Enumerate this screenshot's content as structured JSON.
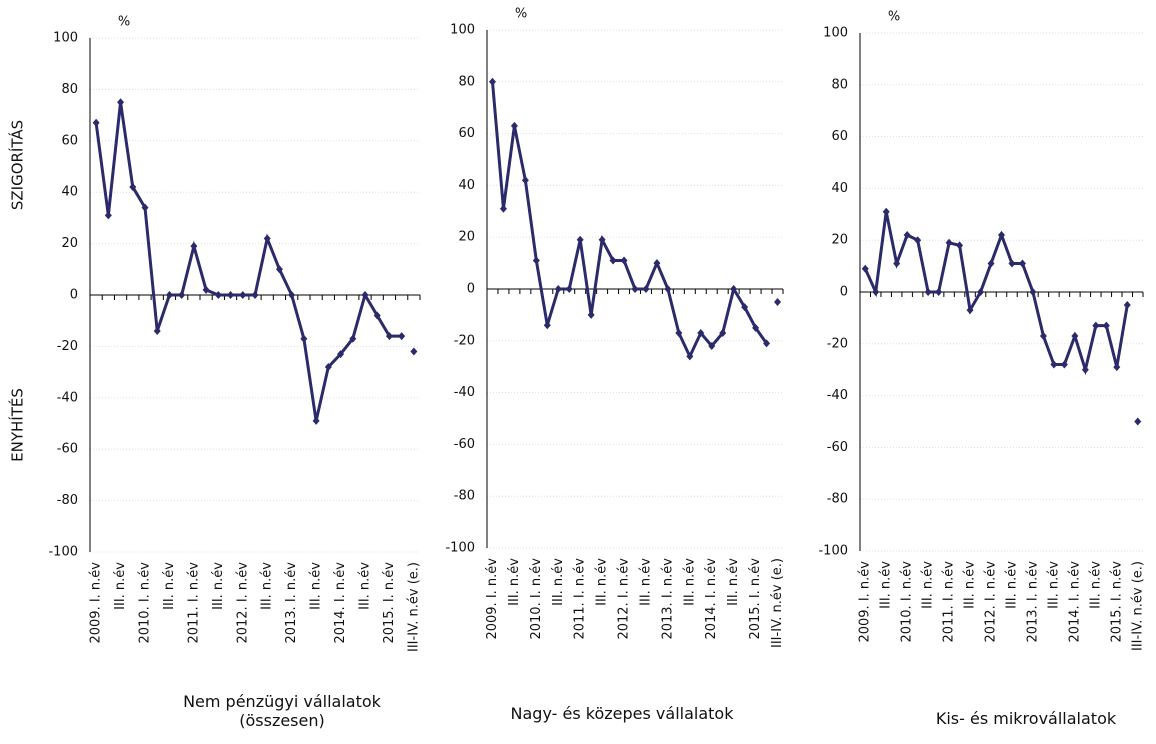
{
  "chart_data": [
    {
      "type": "line",
      "title": "Nem pénzügyi vállalatok (összesen)",
      "y_unit": "%",
      "annotations": [
        "SZIGORÍTÁS",
        "ENYHÍTÉS"
      ],
      "categories": [
        "2009. I. n.év",
        null,
        "III. n.év",
        null,
        "2010. I. n.év",
        null,
        "III. n.év",
        null,
        "2011. I. n.év",
        null,
        "III. n.év",
        null,
        "2012. I. n.év",
        null,
        "III. n.év",
        null,
        "2013. I. n.év",
        null,
        "III. n.év",
        null,
        "2014. I. n.év",
        null,
        "III. n.év",
        null,
        "2015. I. n.év",
        null,
        "III-IV. n.év (e.)"
      ],
      "series": [
        {
          "color": "#2b2a6a",
          "values": [
            67,
            31,
            75,
            42,
            34,
            -14,
            0,
            0,
            19,
            2,
            0,
            0,
            0,
            0,
            22,
            10,
            0,
            -17,
            -49,
            -28,
            -23,
            -17,
            0,
            -8,
            -16,
            -16,
            null
          ]
        },
        {
          "color": "#2b2a6a",
          "values": [
            null,
            null,
            null,
            null,
            null,
            null,
            null,
            null,
            null,
            null,
            null,
            null,
            null,
            null,
            null,
            null,
            null,
            null,
            null,
            null,
            null,
            null,
            null,
            null,
            null,
            null,
            -22
          ]
        }
      ],
      "ylim": [
        -100,
        100
      ],
      "yticks": [
        -100,
        -80,
        -60,
        -40,
        -20,
        0,
        20,
        40,
        60,
        80,
        100
      ],
      "grid": true
    },
    {
      "type": "line",
      "title": "Nagy- és közepes vállalatok",
      "y_unit": "%",
      "categories": [
        "2009. I. n.év",
        null,
        "III. n.év",
        null,
        "2010. I. n.év",
        null,
        "III. n.év",
        null,
        "2011. I. n.év",
        null,
        "III. n.év",
        null,
        "2012. I. n.év",
        null,
        "III. n.év",
        null,
        "2013. I. n.év",
        null,
        "III. n.év",
        null,
        "2014. I. n.év",
        null,
        "III. n.év",
        null,
        "2015. I. n.év",
        null,
        "III-IV. n.év (e.)"
      ],
      "series": [
        {
          "color": "#2b2a6a",
          "values": [
            80,
            31,
            63,
            42,
            11,
            -14,
            0,
            0,
            19,
            -10,
            19,
            11,
            11,
            0,
            0,
            10,
            0,
            -17,
            -26,
            -17,
            -22,
            -17,
            0,
            -7,
            -15,
            -21,
            null
          ]
        },
        {
          "color": "#2b2a6a",
          "values": [
            null,
            null,
            null,
            null,
            null,
            null,
            null,
            null,
            null,
            null,
            null,
            null,
            null,
            null,
            null,
            null,
            null,
            null,
            null,
            null,
            null,
            null,
            null,
            null,
            null,
            null,
            -5
          ]
        }
      ],
      "ylim": [
        -100,
        100
      ],
      "yticks": [
        -100,
        -80,
        -60,
        -40,
        -20,
        0,
        20,
        40,
        60,
        80,
        100
      ],
      "grid": true
    },
    {
      "type": "line",
      "title": "Kis- és mikrovállalatok",
      "y_unit": "%",
      "categories": [
        "2009. I. n.év",
        null,
        "III. n.év",
        null,
        "2010. I. n.év",
        null,
        "III. n.év",
        null,
        "2011. I. n.év",
        null,
        "III. n.év",
        null,
        "2012. I. n.év",
        null,
        "III. n.év",
        null,
        "2013. I. n.év",
        null,
        "III. n.év",
        null,
        "2014. I. n.év",
        null,
        "III. n.év",
        null,
        "2015. I. n.év",
        null,
        "III-IV. n.év (e.)"
      ],
      "series": [
        {
          "color": "#2b2a6a",
          "values": [
            9,
            0,
            31,
            11,
            22,
            20,
            0,
            0,
            19,
            18,
            -7,
            0,
            11,
            22,
            11,
            11,
            0,
            -17,
            -28,
            -28,
            -17,
            -30,
            -13,
            -13,
            -29,
            -5,
            null
          ]
        },
        {
          "color": "#2b2a6a",
          "values": [
            null,
            null,
            null,
            null,
            null,
            null,
            null,
            null,
            null,
            null,
            null,
            null,
            null,
            null,
            null,
            null,
            null,
            null,
            null,
            null,
            null,
            null,
            null,
            null,
            null,
            null,
            -50
          ]
        }
      ],
      "ylim": [
        -100,
        100
      ],
      "yticks": [
        -100,
        -80,
        -60,
        -40,
        -20,
        0,
        20,
        40,
        60,
        80,
        100
      ],
      "grid": true
    }
  ]
}
